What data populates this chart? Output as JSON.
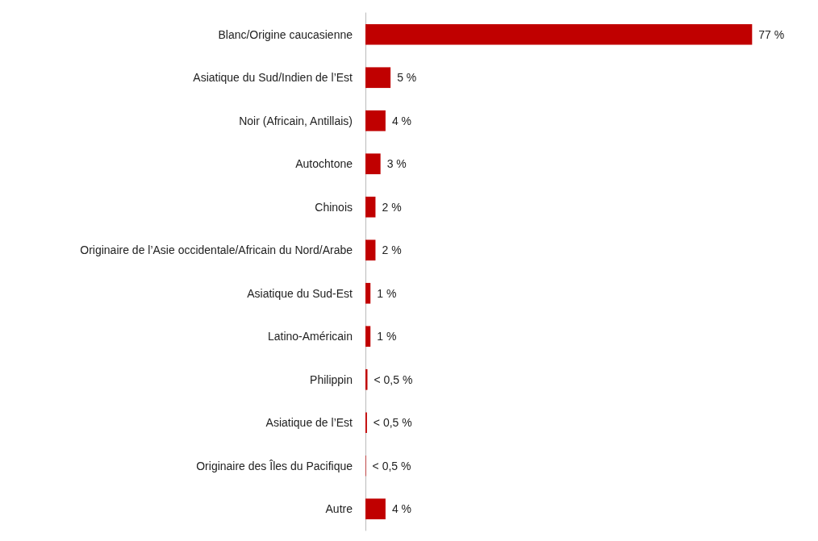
{
  "chart_data": {
    "type": "bar",
    "orientation": "horizontal",
    "categories": [
      "Blanc/Origine caucasienne",
      "Asiatique du Sud/Indien de l’Est",
      "Noir (Africain, Antillais)",
      "Autochtone",
      "Chinois",
      "Originaire de l’Asie occidentale/Africain du Nord/Arabe",
      "Asiatique du Sud-Est",
      "Latino-Américain",
      "Philippin",
      "Asiatique de l’Est",
      "Originaire des Îles du Pacifique",
      "Autre"
    ],
    "values": [
      77,
      5,
      4,
      3,
      2,
      2,
      1,
      1,
      0.4,
      0.3,
      0.1,
      4
    ],
    "value_labels": [
      "77 %",
      "5 %",
      "4 %",
      "3 %",
      "2 %",
      "2 %",
      "1 %",
      "1 %",
      "< 0,5 %",
      "< 0,5 %",
      "< 0,5 %",
      "4 %"
    ],
    "color": "#c00000",
    "grid": false
  }
}
